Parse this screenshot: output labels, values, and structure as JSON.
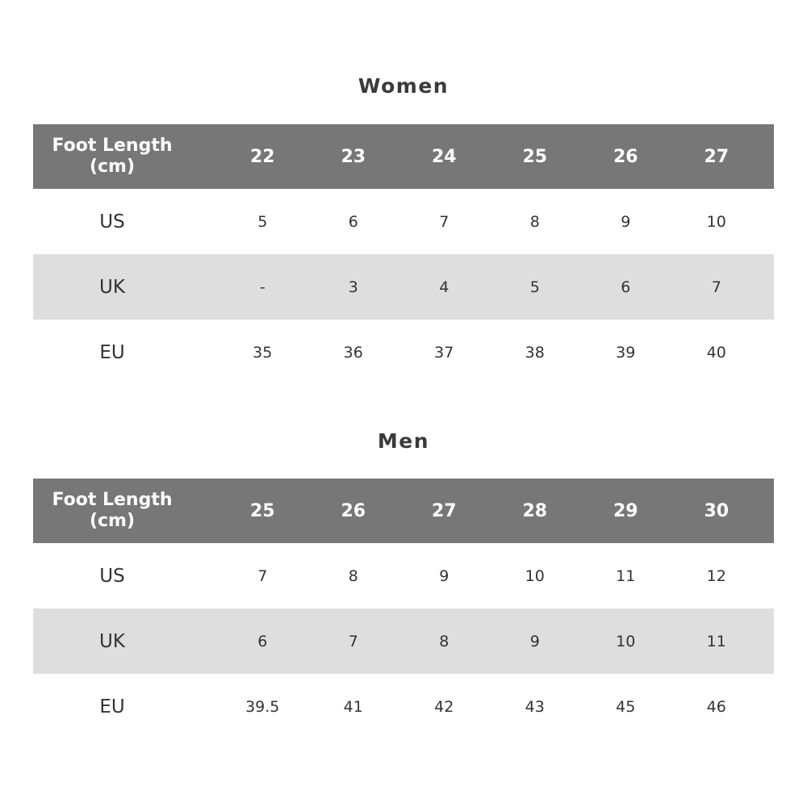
{
  "tables": [
    {
      "title": "Women",
      "header_label": [
        "Foot Length",
        "(cm)"
      ],
      "sizes": [
        "22",
        "23",
        "24",
        "25",
        "26",
        "27"
      ],
      "rows": [
        {
          "label": "US",
          "values": [
            "5",
            "6",
            "7",
            "8",
            "9",
            "10"
          ]
        },
        {
          "label": "UK",
          "values": [
            "-",
            "3",
            "4",
            "5",
            "6",
            "7"
          ]
        },
        {
          "label": "EU",
          "values": [
            "35",
            "36",
            "37",
            "38",
            "39",
            "40"
          ]
        }
      ]
    },
    {
      "title": "Men",
      "header_label": [
        "Foot Length",
        "(cm)"
      ],
      "sizes": [
        "25",
        "26",
        "27",
        "28",
        "29",
        "30"
      ],
      "rows": [
        {
          "label": "US",
          "values": [
            "7",
            "8",
            "9",
            "10",
            "11",
            "12"
          ]
        },
        {
          "label": "UK",
          "values": [
            "6",
            "7",
            "8",
            "9",
            "10",
            "11"
          ]
        },
        {
          "label": "EU",
          "values": [
            "39.5",
            "41",
            "42",
            "43",
            "45",
            "46"
          ]
        }
      ]
    }
  ],
  "colors": {
    "header_bg": "#777777",
    "stripe_bg": "#dedede",
    "text": "#333333"
  }
}
